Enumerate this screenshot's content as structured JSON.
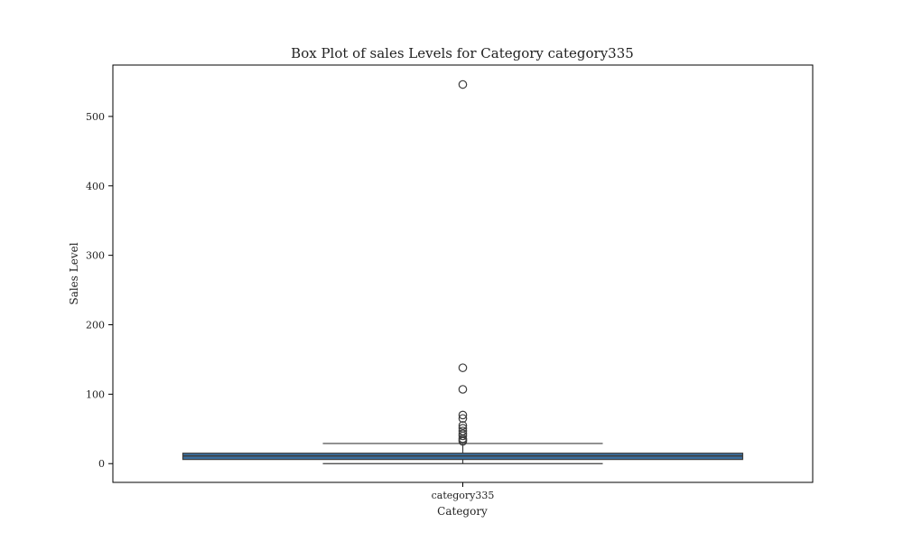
{
  "chart_data": {
    "type": "box",
    "title": "Box Plot of sales Levels for Category category335",
    "xlabel": "Category",
    "ylabel": "Sales Level",
    "categories": [
      "category335"
    ],
    "ylim": [
      -27,
      574
    ],
    "yticks": [
      0,
      100,
      200,
      300,
      400,
      500
    ],
    "grid": false,
    "boxes": [
      {
        "category": "category335",
        "whisker_low": 0,
        "q1": 6,
        "median": 11,
        "q3": 15,
        "whisker_high": 29,
        "outliers": [
          32,
          34,
          36,
          40,
          43,
          47,
          51,
          55,
          65,
          70,
          107,
          138,
          546
        ]
      }
    ],
    "colors": {
      "box_fill": "#3a6e9e",
      "line": "#3d3d3d",
      "frame": "#000000"
    }
  }
}
